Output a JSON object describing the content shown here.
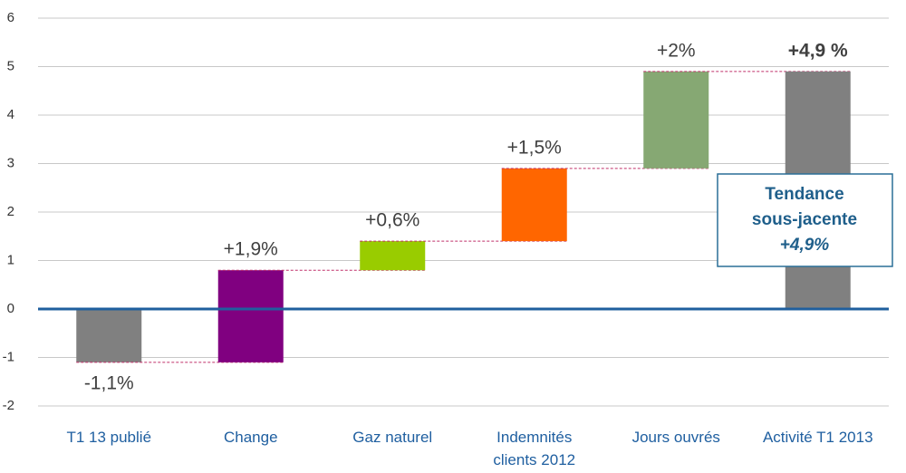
{
  "chart_data": {
    "type": "waterfall",
    "categories": [
      "T1 13 publié",
      "Change",
      "Gaz naturel",
      "Indemnités clients 2012",
      "Jours ouvrés",
      "Activité T1 2013"
    ],
    "values": [
      -1.1,
      1.9,
      0.6,
      1.5,
      2,
      4.9
    ],
    "value_labels": [
      "-1,1%",
      "+1,9%",
      "+0,6%",
      "+1,5%",
      "+2%",
      "+4,9 %"
    ],
    "is_total": [
      false,
      false,
      false,
      false,
      false,
      true
    ],
    "colors": [
      "#808080",
      "#800080",
      "#99cc00",
      "#ff6600",
      "#86a873",
      "#808080"
    ],
    "ylim": [
      -2,
      6
    ],
    "yticks": [
      -2,
      -1,
      0,
      1,
      2,
      3,
      4,
      5,
      6
    ],
    "grid": true,
    "annotation": [
      "Tendance",
      "sous-jacente",
      "+4,9%"
    ]
  }
}
